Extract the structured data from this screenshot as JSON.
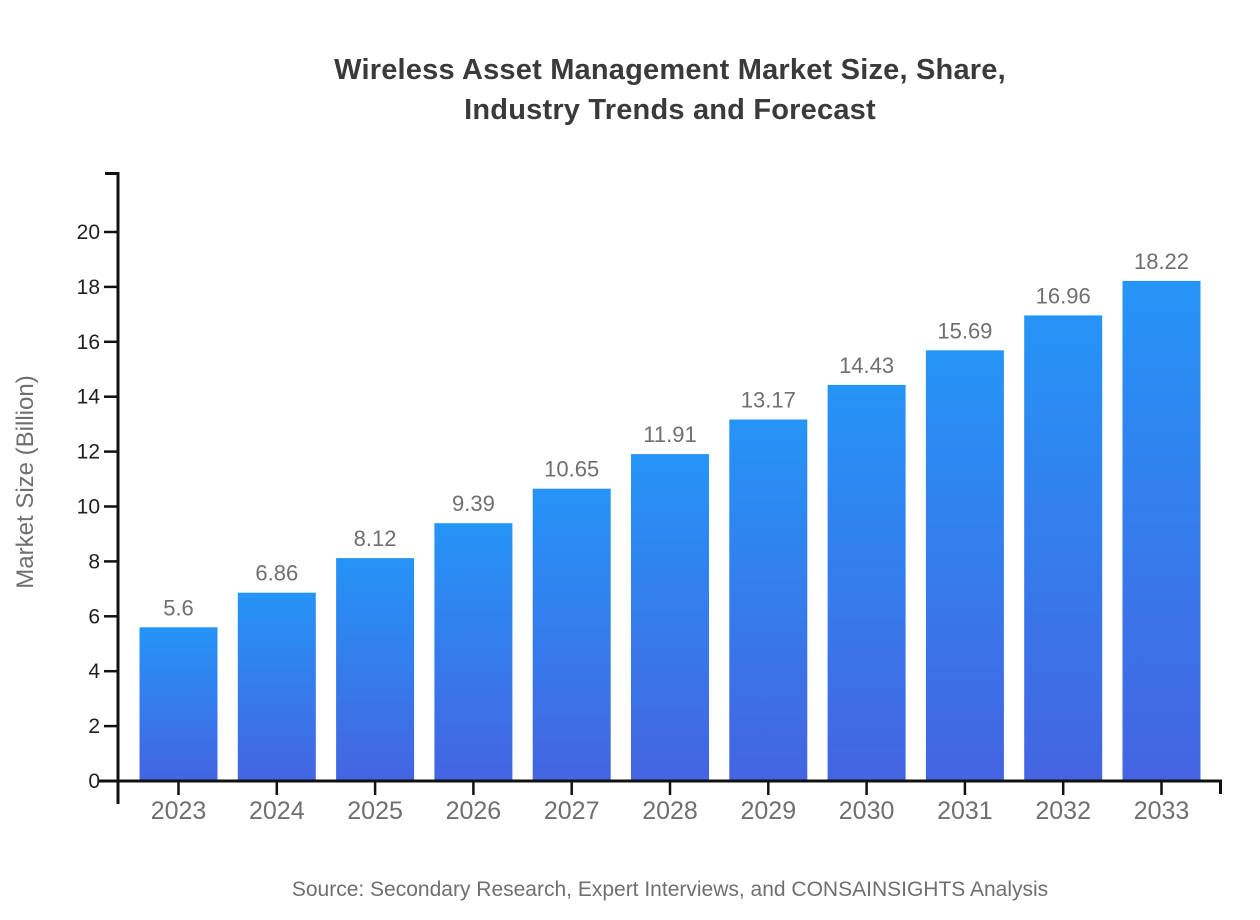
{
  "title": {
    "line1": "Wireless Asset Management Market Size, Share,",
    "line2": "Industry Trends and Forecast"
  },
  "source_note": "Source: Secondary Research, Expert Interviews, and CONSAINSIGHTS Analysis",
  "colors": {
    "background": "#ffffff",
    "title_text": "#3a3a3a",
    "axis": "#111111",
    "y_tick_label": "#1f1f1f",
    "x_tick_label": "#6f6f6f",
    "value_label": "#6f6f6f",
    "y_axis_title": "#6f6f6f",
    "source_text": "#6f6f6f",
    "bar_gradient_top": "#2594f7",
    "bar_gradient_bottom": "#4464e1"
  },
  "chart_data": {
    "type": "bar",
    "title": "Wireless Asset Management Market Size, Share, Industry Trends and Forecast",
    "categories": [
      "2023",
      "2024",
      "2025",
      "2026",
      "2027",
      "2028",
      "2029",
      "2030",
      "2031",
      "2032",
      "2033"
    ],
    "values": [
      5.6,
      6.86,
      8.12,
      9.39,
      10.65,
      11.91,
      13.17,
      14.43,
      15.69,
      16.96,
      18.22
    ],
    "value_labels": [
      "5.6",
      "6.86",
      "8.12",
      "9.39",
      "10.65",
      "11.91",
      "13.17",
      "14.43",
      "15.69",
      "16.96",
      "18.22"
    ],
    "xlabel": "",
    "ylabel": "Market Size (Billion)",
    "ylim": [
      0,
      22
    ],
    "yticks": [
      0,
      2,
      4,
      6,
      8,
      10,
      12,
      14,
      16,
      18,
      20
    ],
    "grid": false,
    "legend": "none"
  }
}
